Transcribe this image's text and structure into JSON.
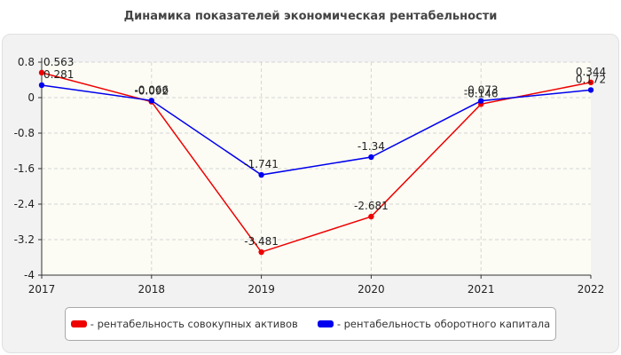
{
  "chart_data": {
    "type": "line",
    "title": "Динамика показателей экономическая рентабельности",
    "xlabel": "",
    "ylabel": "",
    "categories": [
      "2017",
      "2018",
      "2019",
      "2020",
      "2021",
      "2022"
    ],
    "ylim": [
      -4,
      0.8
    ],
    "yticks": [
      "0.8",
      "0",
      "-0.8",
      "-1.6",
      "-2.4",
      "-3.2",
      "-4"
    ],
    "grid": true,
    "legend_position": "bottom",
    "series": [
      {
        "name": "- рентабельность совокупных активов",
        "color": "#ee0000",
        "values": [
          0.563,
          -0.092,
          -3.481,
          -2.681,
          -0.146,
          0.344
        ],
        "labels": [
          "0.563",
          "-0.092",
          "-3.481",
          "-2.681",
          "-0.146",
          "0.344"
        ]
      },
      {
        "name": "- рентабельность оборотного капитала",
        "color": "#0000ee",
        "values": [
          0.281,
          -0.066,
          -1.741,
          -1.34,
          -0.073,
          0.172
        ],
        "labels": [
          "0.281",
          "-0.066",
          "-1.741",
          "-1.34",
          "-0.073",
          "0.172"
        ]
      }
    ]
  }
}
